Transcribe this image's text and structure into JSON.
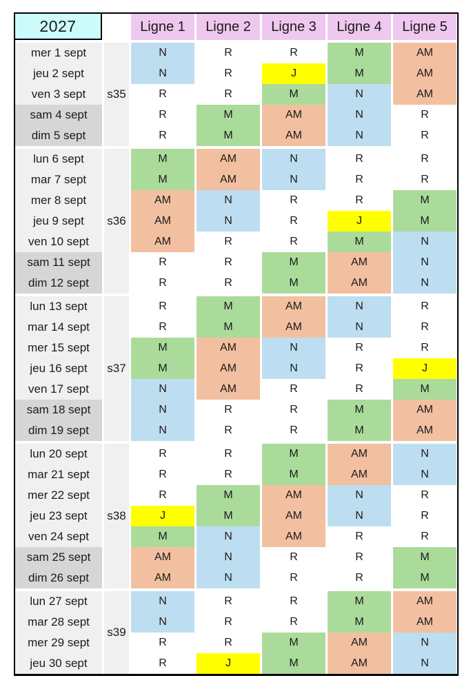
{
  "header": {
    "year": "2027",
    "columns": [
      "Ligne 1",
      "Ligne 2",
      "Ligne 3",
      "Ligne 4",
      "Ligne 5"
    ]
  },
  "shift_colors": {
    "N": "#BDDEF0",
    "M": "#ABDB9B",
    "AM": "#F2C0A0",
    "J": "#FFFF00",
    "R": "#FFFFFF"
  },
  "ui_colors": {
    "year_bg": "#CDFAFA",
    "line_header_bg": "#EFC8EF",
    "weekday_bg": "#F0F0F0",
    "weekend_bg": "#D6D6D6",
    "border": "#000000",
    "text": "#1A1A1A"
  },
  "weeks": [
    {
      "label": "s35",
      "days": [
        {
          "date": "mer 1 sept",
          "weekend": false,
          "shifts": [
            "N",
            "R",
            "R",
            "M",
            "AM"
          ]
        },
        {
          "date": "jeu 2 sept",
          "weekend": false,
          "shifts": [
            "N",
            "R",
            "J",
            "M",
            "AM"
          ]
        },
        {
          "date": "ven 3 sept",
          "weekend": false,
          "shifts": [
            "R",
            "R",
            "M",
            "N",
            "AM"
          ]
        },
        {
          "date": "sam 4 sept",
          "weekend": true,
          "shifts": [
            "R",
            "M",
            "AM",
            "N",
            "R"
          ]
        },
        {
          "date": "dim 5 sept",
          "weekend": true,
          "shifts": [
            "R",
            "M",
            "AM",
            "N",
            "R"
          ]
        }
      ]
    },
    {
      "label": "s36",
      "days": [
        {
          "date": "lun 6 sept",
          "weekend": false,
          "shifts": [
            "M",
            "AM",
            "N",
            "R",
            "R"
          ]
        },
        {
          "date": "mar 7 sept",
          "weekend": false,
          "shifts": [
            "M",
            "AM",
            "N",
            "R",
            "R"
          ]
        },
        {
          "date": "mer 8 sept",
          "weekend": false,
          "shifts": [
            "AM",
            "N",
            "R",
            "R",
            "M"
          ]
        },
        {
          "date": "jeu 9 sept",
          "weekend": false,
          "shifts": [
            "AM",
            "N",
            "R",
            "J",
            "M"
          ]
        },
        {
          "date": "ven 10 sept",
          "weekend": false,
          "shifts": [
            "AM",
            "R",
            "R",
            "M",
            "N"
          ]
        },
        {
          "date": "sam 11 sept",
          "weekend": true,
          "shifts": [
            "R",
            "R",
            "M",
            "AM",
            "N"
          ]
        },
        {
          "date": "dim 12 sept",
          "weekend": true,
          "shifts": [
            "R",
            "R",
            "M",
            "AM",
            "N"
          ]
        }
      ]
    },
    {
      "label": "s37",
      "days": [
        {
          "date": "lun 13 sept",
          "weekend": false,
          "shifts": [
            "R",
            "M",
            "AM",
            "N",
            "R"
          ]
        },
        {
          "date": "mar 14 sept",
          "weekend": false,
          "shifts": [
            "R",
            "M",
            "AM",
            "N",
            "R"
          ]
        },
        {
          "date": "mer 15 sept",
          "weekend": false,
          "shifts": [
            "M",
            "AM",
            "N",
            "R",
            "R"
          ]
        },
        {
          "date": "jeu 16 sept",
          "weekend": false,
          "shifts": [
            "M",
            "AM",
            "N",
            "R",
            "J"
          ]
        },
        {
          "date": "ven 17 sept",
          "weekend": false,
          "shifts": [
            "N",
            "AM",
            "R",
            "R",
            "M"
          ]
        },
        {
          "date": "sam 18 sept",
          "weekend": true,
          "shifts": [
            "N",
            "R",
            "R",
            "M",
            "AM"
          ]
        },
        {
          "date": "dim 19 sept",
          "weekend": true,
          "shifts": [
            "N",
            "R",
            "R",
            "M",
            "AM"
          ]
        }
      ]
    },
    {
      "label": "s38",
      "days": [
        {
          "date": "lun 20 sept",
          "weekend": false,
          "shifts": [
            "R",
            "R",
            "M",
            "AM",
            "N"
          ]
        },
        {
          "date": "mar 21 sept",
          "weekend": false,
          "shifts": [
            "R",
            "R",
            "M",
            "AM",
            "N"
          ]
        },
        {
          "date": "mer 22 sept",
          "weekend": false,
          "shifts": [
            "R",
            "M",
            "AM",
            "N",
            "R"
          ]
        },
        {
          "date": "jeu 23 sept",
          "weekend": false,
          "shifts": [
            "J",
            "M",
            "AM",
            "N",
            "R"
          ]
        },
        {
          "date": "ven 24 sept",
          "weekend": false,
          "shifts": [
            "M",
            "N",
            "AM",
            "R",
            "R"
          ]
        },
        {
          "date": "sam 25 sept",
          "weekend": true,
          "shifts": [
            "AM",
            "N",
            "R",
            "R",
            "M"
          ]
        },
        {
          "date": "dim 26 sept",
          "weekend": true,
          "shifts": [
            "AM",
            "N",
            "R",
            "R",
            "M"
          ]
        }
      ]
    },
    {
      "label": "s39",
      "days": [
        {
          "date": "lun 27 sept",
          "weekend": false,
          "shifts": [
            "N",
            "R",
            "R",
            "M",
            "AM"
          ]
        },
        {
          "date": "mar 28 sept",
          "weekend": false,
          "shifts": [
            "N",
            "R",
            "R",
            "M",
            "AM"
          ]
        },
        {
          "date": "mer 29 sept",
          "weekend": false,
          "shifts": [
            "R",
            "R",
            "M",
            "AM",
            "N"
          ]
        },
        {
          "date": "jeu 30 sept",
          "weekend": false,
          "shifts": [
            "R",
            "J",
            "M",
            "AM",
            "N"
          ]
        }
      ]
    }
  ]
}
